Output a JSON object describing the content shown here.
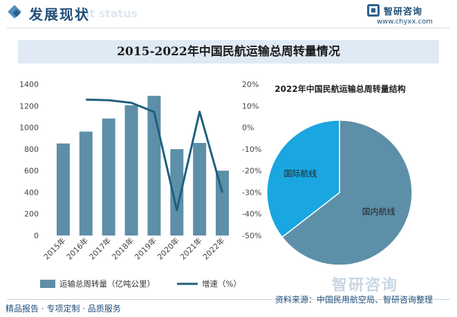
{
  "header": {
    "title": "发展现状",
    "subtitle_watermark": "nt status"
  },
  "brand": {
    "name": "智研咨询",
    "url": "www.chyxx.com",
    "bottom_mark": "智研咨询"
  },
  "banner": {
    "title": "2015-2022年中国民航运输总周转量情况"
  },
  "footer": {
    "left": "精品报告 · 专项定制 · 品质服务",
    "right": "资料来源：中国民用航空局、智研咨询整理"
  },
  "colors": {
    "bar": "#5e8fa8",
    "line": "#1f5f7e",
    "pie_domestic": "#5e8fa8",
    "pie_international": "#1aa6e0",
    "title": "#1f4e79"
  },
  "chart_data": [
    {
      "type": "bar",
      "categories": [
        "2015年",
        "2016年",
        "2017年",
        "2018年",
        "2019年",
        "2020年",
        "2021年",
        "2022年"
      ],
      "series": [
        {
          "name": "运输总周转量（亿吨公里）",
          "type": "bar",
          "axis": "left",
          "values": [
            852,
            962,
            1083,
            1206,
            1293,
            799,
            857,
            600
          ]
        },
        {
          "name": "增速（%）",
          "type": "line",
          "axis": "right",
          "values": [
            null,
            12.9,
            12.6,
            11.4,
            7.2,
            -38.3,
            7.3,
            -30.1
          ]
        }
      ],
      "ylim": [
        0,
        1400
      ],
      "yticks": [
        "0",
        "200",
        "400",
        "600",
        "800",
        "1000",
        "1200",
        "1400"
      ],
      "y2lim": [
        -50,
        20
      ],
      "y2ticks": [
        "-50%",
        "-40%",
        "-30%",
        "-20%",
        "-10%",
        "0%",
        "10%",
        "20%"
      ],
      "legend": "bottom"
    },
    {
      "type": "pie",
      "title": "2022年中国民航运输总周转量结构",
      "labels": [
        "国内航线",
        "国际航线"
      ],
      "values": [
        64.5,
        35.5
      ]
    }
  ]
}
